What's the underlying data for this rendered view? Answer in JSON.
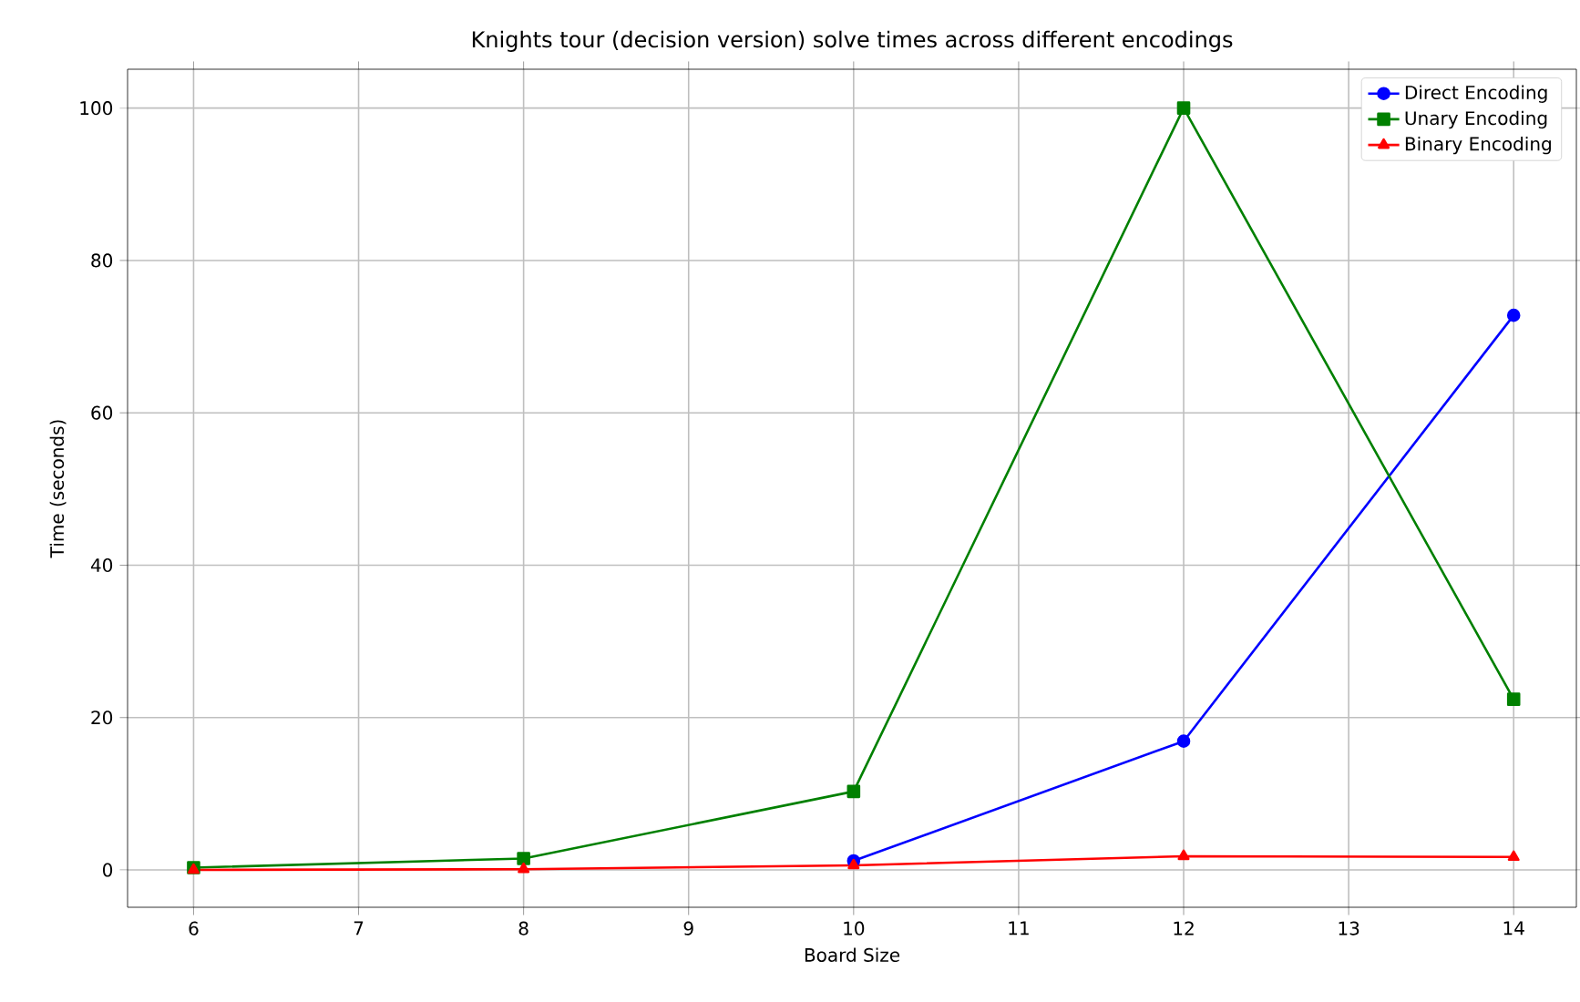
{
  "chart_data": {
    "type": "line",
    "title": "Knights tour (decision version) solve times across different encodings",
    "xlabel": "Board Size",
    "ylabel": "Time (seconds)",
    "x": [
      6,
      8,
      10,
      12,
      14
    ],
    "series": [
      {
        "name": "Direct Encoding",
        "color": "#0000ff",
        "marker": "circle",
        "values": [
          null,
          null,
          1.2,
          16.9,
          72.8
        ]
      },
      {
        "name": "Unary Encoding",
        "color": "#008000",
        "marker": "square",
        "values": [
          0.3,
          1.5,
          10.3,
          100,
          22.4
        ]
      },
      {
        "name": "Binary Encoding",
        "color": "#ff0000",
        "marker": "triangle",
        "values": [
          0,
          0.1,
          0.6,
          1.8,
          1.7
        ]
      }
    ],
    "xlim": [
      5.6,
      14.38
    ],
    "ylim": [
      -4.9,
      105.1
    ],
    "xticks": [
      6,
      7,
      8,
      9,
      10,
      11,
      12,
      13,
      14
    ],
    "yticks": [
      0,
      20,
      40,
      60,
      80,
      100
    ],
    "grid": true,
    "legend": "top right",
    "line_style": "solid"
  }
}
